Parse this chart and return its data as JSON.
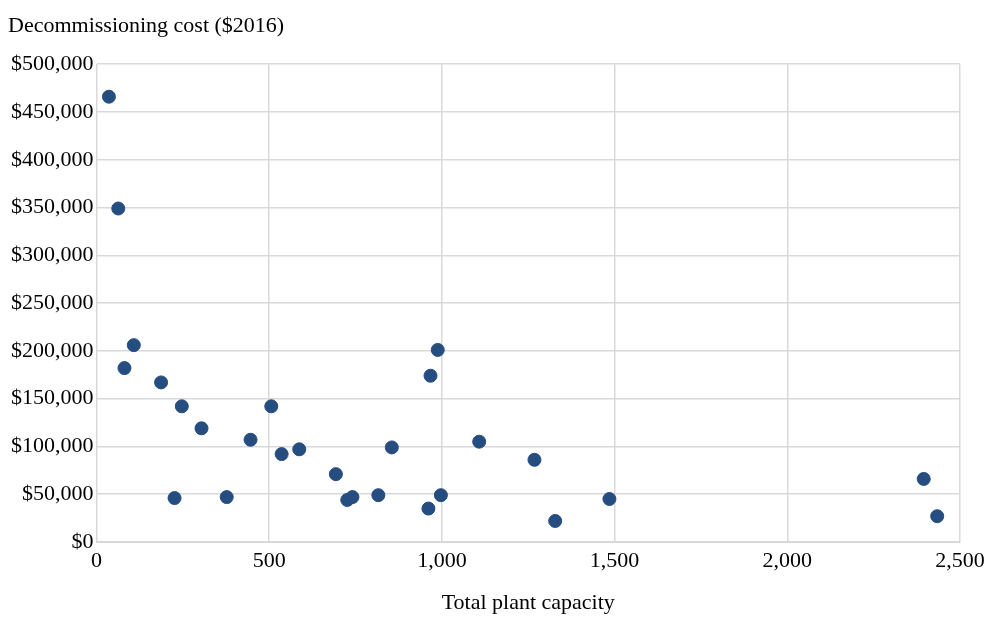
{
  "chart_data": {
    "type": "scatter",
    "ylabel": "Decommissioning cost ($2016)",
    "xlabel": "Total plant capacity",
    "marker": "circle",
    "grid": true,
    "legend": false,
    "xlim": [
      0,
      2500
    ],
    "xticks": [
      0,
      500,
      {
        "value": 1000,
        "label": "1,000"
      },
      {
        "value": 1500,
        "label": "1,500"
      },
      {
        "value": 2000,
        "label": "2,000"
      },
      {
        "value": 2500,
        "label": "2,500"
      }
    ],
    "ylim": [
      0,
      500000
    ],
    "yticks": [
      {
        "value": 0,
        "label": "$0"
      },
      {
        "value": 50000,
        "label": "$50,000"
      },
      {
        "value": 100000,
        "label": "$100,000"
      },
      {
        "value": 150000,
        "label": "$150,000"
      },
      {
        "value": 200000,
        "label": "$200,000"
      },
      {
        "value": 250000,
        "label": "$250,000"
      },
      {
        "value": 300000,
        "label": "$300,000"
      },
      {
        "value": 350000,
        "label": "$350,000"
      },
      {
        "value": 400000,
        "label": "$400,000"
      },
      {
        "value": 450000,
        "label": "$450,000"
      },
      {
        "value": 500000,
        "label": "$500,000"
      }
    ],
    "series": [
      {
        "color": "#264d80",
        "x": [
          36,
          63,
          81,
          108,
          187,
          247,
          226,
          304,
          377,
          446,
          506,
          536,
          587,
          693,
          726,
          741,
          816,
          855,
          961,
          967,
          988,
          997,
          1108,
          1268,
          1328,
          1485,
          2395,
          2434
        ],
        "values": [
          466000,
          349000,
          182000,
          206000,
          167000,
          142000,
          46000,
          119000,
          47000,
          107000,
          142000,
          92000,
          97000,
          71000,
          44000,
          47000,
          49000,
          99000,
          35000,
          174000,
          201000,
          49000,
          105000,
          86000,
          22000,
          45000,
          66000,
          27000
        ]
      }
    ]
  }
}
